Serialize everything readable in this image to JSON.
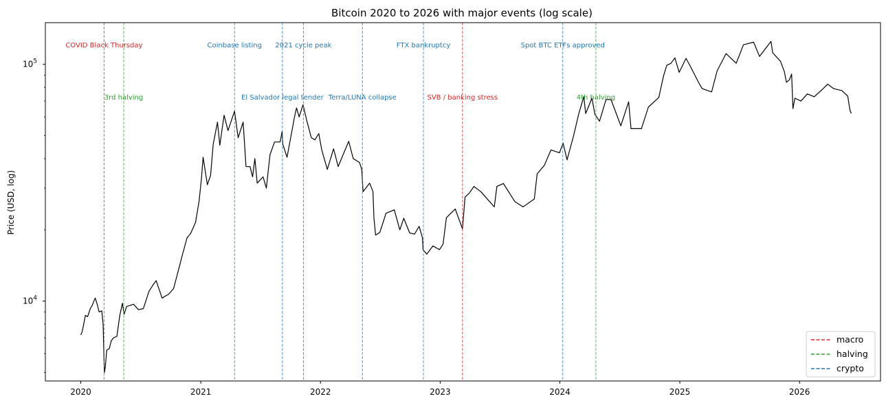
{
  "chart_data": {
    "type": "line",
    "title": "Bitcoin 2020 to 2026 with major events (log scale)",
    "xlabel": "",
    "ylabel": "Price (USD, log)",
    "y_scale": "log",
    "ylim": [
      4600,
      150000
    ],
    "xlim": [
      "2019-09-15",
      "2026-09-05"
    ],
    "x_ticks": [
      "2020",
      "2021",
      "2022",
      "2023",
      "2024",
      "2025",
      "2026"
    ],
    "y_ticks": [
      {
        "value": 10000,
        "label": "10^4"
      },
      {
        "value": 100000,
        "label": "10^5"
      }
    ],
    "grid": false,
    "series": [
      {
        "name": "",
        "color": "#000000",
        "points": [
          [
            "2020-01-01",
            7200
          ],
          [
            "2020-01-05",
            7400
          ],
          [
            "2020-01-10",
            8000
          ],
          [
            "2020-01-15",
            8700
          ],
          [
            "2020-01-22",
            8600
          ],
          [
            "2020-01-30",
            9300
          ],
          [
            "2020-02-05",
            9600
          ],
          [
            "2020-02-10",
            10000
          ],
          [
            "2020-02-14",
            10300
          ],
          [
            "2020-02-20",
            9700
          ],
          [
            "2020-02-26",
            9000
          ],
          [
            "2020-03-05",
            9100
          ],
          [
            "2020-03-09",
            8000
          ],
          [
            "2020-03-12",
            5600
          ],
          [
            "2020-03-13",
            5000
          ],
          [
            "2020-03-16",
            5300
          ],
          [
            "2020-03-20",
            6200
          ],
          [
            "2020-03-28",
            6300
          ],
          [
            "2020-04-03",
            6800
          ],
          [
            "2020-04-10",
            7000
          ],
          [
            "2020-04-20",
            7100
          ],
          [
            "2020-04-29",
            8700
          ],
          [
            "2020-05-07",
            9800
          ],
          [
            "2020-05-12",
            8800
          ],
          [
            "2020-05-20",
            9500
          ],
          [
            "2020-05-31",
            9600
          ],
          [
            "2020-06-10",
            9700
          ],
          [
            "2020-06-25",
            9200
          ],
          [
            "2020-07-10",
            9300
          ],
          [
            "2020-07-27",
            11000
          ],
          [
            "2020-08-10",
            11800
          ],
          [
            "2020-08-18",
            12200
          ],
          [
            "2020-09-05",
            10300
          ],
          [
            "2020-09-25",
            10700
          ],
          [
            "2020-10-10",
            11300
          ],
          [
            "2020-10-21",
            12900
          ],
          [
            "2020-11-05",
            15500
          ],
          [
            "2020-11-20",
            18500
          ],
          [
            "2020-12-01",
            19300
          ],
          [
            "2020-12-16",
            21500
          ],
          [
            "2020-12-27",
            26500
          ],
          [
            "2021-01-03",
            33000
          ],
          [
            "2021-01-08",
            40500
          ],
          [
            "2021-01-21",
            31000
          ],
          [
            "2021-01-31",
            34000
          ],
          [
            "2021-02-08",
            46000
          ],
          [
            "2021-02-21",
            57000
          ],
          [
            "2021-02-28",
            45500
          ],
          [
            "2021-03-13",
            61000
          ],
          [
            "2021-03-25",
            52500
          ],
          [
            "2021-04-14",
            63500
          ],
          [
            "2021-04-25",
            49000
          ],
          [
            "2021-05-10",
            57000
          ],
          [
            "2021-05-13",
            49500
          ],
          [
            "2021-05-19",
            37000
          ],
          [
            "2021-05-31",
            37000
          ],
          [
            "2021-06-08",
            33500
          ],
          [
            "2021-06-15",
            40000
          ],
          [
            "2021-06-22",
            31500
          ],
          [
            "2021-07-10",
            33500
          ],
          [
            "2021-07-20",
            30000
          ],
          [
            "2021-07-31",
            41500
          ],
          [
            "2021-08-14",
            47000
          ],
          [
            "2021-08-31",
            47000
          ],
          [
            "2021-09-06",
            52000
          ],
          [
            "2021-09-08",
            46000
          ],
          [
            "2021-09-21",
            40500
          ],
          [
            "2021-10-01",
            48000
          ],
          [
            "2021-10-15",
            61000
          ],
          [
            "2021-10-20",
            65500
          ],
          [
            "2021-10-28",
            60000
          ],
          [
            "2021-11-09",
            67500
          ],
          [
            "2021-11-20",
            58000
          ],
          [
            "2021-12-04",
            49000
          ],
          [
            "2021-12-15",
            48000
          ],
          [
            "2021-12-27",
            51000
          ],
          [
            "2022-01-05",
            43500
          ],
          [
            "2022-01-22",
            36000
          ],
          [
            "2022-02-10",
            44000
          ],
          [
            "2022-02-24",
            37000
          ],
          [
            "2022-03-28",
            47300
          ],
          [
            "2022-04-11",
            40000
          ],
          [
            "2022-04-30",
            38500
          ],
          [
            "2022-05-07",
            36000
          ],
          [
            "2022-05-11",
            29000
          ],
          [
            "2022-05-31",
            31500
          ],
          [
            "2022-06-10",
            29000
          ],
          [
            "2022-06-13",
            22500
          ],
          [
            "2022-06-18",
            19000
          ],
          [
            "2022-07-01",
            19500
          ],
          [
            "2022-07-20",
            23500
          ],
          [
            "2022-08-14",
            24300
          ],
          [
            "2022-08-31",
            20000
          ],
          [
            "2022-09-12",
            22400
          ],
          [
            "2022-09-30",
            19400
          ],
          [
            "2022-10-15",
            19200
          ],
          [
            "2022-10-29",
            20700
          ],
          [
            "2022-11-08",
            18500
          ],
          [
            "2022-11-10",
            16500
          ],
          [
            "2022-11-21",
            15800
          ],
          [
            "2022-12-10",
            17100
          ],
          [
            "2022-12-30",
            16500
          ],
          [
            "2023-01-10",
            17400
          ],
          [
            "2023-01-20",
            22500
          ],
          [
            "2023-02-16",
            24500
          ],
          [
            "2023-03-10",
            20200
          ],
          [
            "2023-03-18",
            27500
          ],
          [
            "2023-03-30",
            28500
          ],
          [
            "2023-04-14",
            30500
          ],
          [
            "2023-05-05",
            29000
          ],
          [
            "2023-06-15",
            25000
          ],
          [
            "2023-06-23",
            30500
          ],
          [
            "2023-07-13",
            31400
          ],
          [
            "2023-08-17",
            26300
          ],
          [
            "2023-09-11",
            25000
          ],
          [
            "2023-10-15",
            27000
          ],
          [
            "2023-10-24",
            34500
          ],
          [
            "2023-11-15",
            37500
          ],
          [
            "2023-12-05",
            43500
          ],
          [
            "2023-12-31",
            42300
          ],
          [
            "2024-01-11",
            46500
          ],
          [
            "2024-01-23",
            39500
          ],
          [
            "2024-02-12",
            50000
          ],
          [
            "2024-02-28",
            62000
          ],
          [
            "2024-03-14",
            73000
          ],
          [
            "2024-03-20",
            62000
          ],
          [
            "2024-04-08",
            72000
          ],
          [
            "2024-04-17",
            61500
          ],
          [
            "2024-05-01",
            57500
          ],
          [
            "2024-05-21",
            71000
          ],
          [
            "2024-06-05",
            71000
          ],
          [
            "2024-06-24",
            60500
          ],
          [
            "2024-07-05",
            55000
          ],
          [
            "2024-07-29",
            69500
          ],
          [
            "2024-08-05",
            53500
          ],
          [
            "2024-09-06",
            53500
          ],
          [
            "2024-09-27",
            66000
          ],
          [
            "2024-10-29",
            72500
          ],
          [
            "2024-11-12",
            89000
          ],
          [
            "2024-11-22",
            99000
          ],
          [
            "2024-12-05",
            101000
          ],
          [
            "2024-12-17",
            106500
          ],
          [
            "2024-12-30",
            92500
          ],
          [
            "2025-01-20",
            106000
          ],
          [
            "2025-02-03",
            97500
          ],
          [
            "2025-02-27",
            84000
          ],
          [
            "2025-03-10",
            79000
          ],
          [
            "2025-04-08",
            76500
          ],
          [
            "2025-04-25",
            94000
          ],
          [
            "2025-05-22",
            111000
          ],
          [
            "2025-06-22",
            101000
          ],
          [
            "2025-07-14",
            121000
          ],
          [
            "2025-08-14",
            124000
          ],
          [
            "2025-09-01",
            108000
          ],
          [
            "2025-10-06",
            125000
          ],
          [
            "2025-10-11",
            112000
          ],
          [
            "2025-11-04",
            103000
          ],
          [
            "2025-11-16",
            93000
          ],
          [
            "2025-11-22",
            84000
          ],
          [
            "2025-12-01",
            86000
          ],
          [
            "2025-12-08",
            91000
          ],
          [
            "2025-12-12",
            65000
          ],
          [
            "2025-12-18",
            72000
          ],
          [
            "2026-01-05",
            70000
          ],
          [
            "2026-01-25",
            75000
          ],
          [
            "2026-02-15",
            73000
          ],
          [
            "2026-03-10",
            78000
          ],
          [
            "2026-03-28",
            82500
          ],
          [
            "2026-04-15",
            79000
          ],
          [
            "2026-05-10",
            77500
          ],
          [
            "2026-05-28",
            73500
          ],
          [
            "2026-06-04",
            64000
          ],
          [
            "2026-06-08",
            62000
          ]
        ]
      }
    ],
    "events": [
      {
        "date": "2020-03-12",
        "label": "COVID Black Thursday",
        "category": "macro",
        "row": 0
      },
      {
        "date": "2020-05-11",
        "label": "3rd halving",
        "category": "halving",
        "row": 1
      },
      {
        "date": "2021-04-14",
        "label": "Coinbase listing",
        "category": "crypto",
        "row": 0
      },
      {
        "date": "2021-09-07",
        "label": "El Salvador legal tender",
        "category": "crypto",
        "row": 1
      },
      {
        "date": "2021-11-10",
        "label": "2021 cycle peak",
        "category": "crypto",
        "row": 0
      },
      {
        "date": "2022-05-09",
        "label": "Terra/LUNA collapse",
        "category": "crypto",
        "row": 1
      },
      {
        "date": "2022-11-11",
        "label": "FTX bankruptcy",
        "category": "crypto",
        "row": 0
      },
      {
        "date": "2023-03-10",
        "label": "SVB / banking stress",
        "category": "macro",
        "row": 1
      },
      {
        "date": "2024-01-10",
        "label": "Spot BTC ETFs approved",
        "category": "crypto",
        "row": 0
      },
      {
        "date": "2024-04-20",
        "label": "4th halving",
        "category": "halving",
        "row": 1
      }
    ],
    "legend": {
      "position": "lower-right",
      "entries": [
        {
          "name": "macro",
          "color": "#d62728",
          "style": "dashed"
        },
        {
          "name": "halving",
          "color": "#2ca02c",
          "style": "dashed"
        },
        {
          "name": "crypto",
          "color": "#1f77b4",
          "style": "dashed"
        }
      ]
    },
    "colors": {
      "macro": "#d62728",
      "halving": "#2ca02c",
      "crypto": "#1f77b4",
      "line": "#000000"
    }
  }
}
